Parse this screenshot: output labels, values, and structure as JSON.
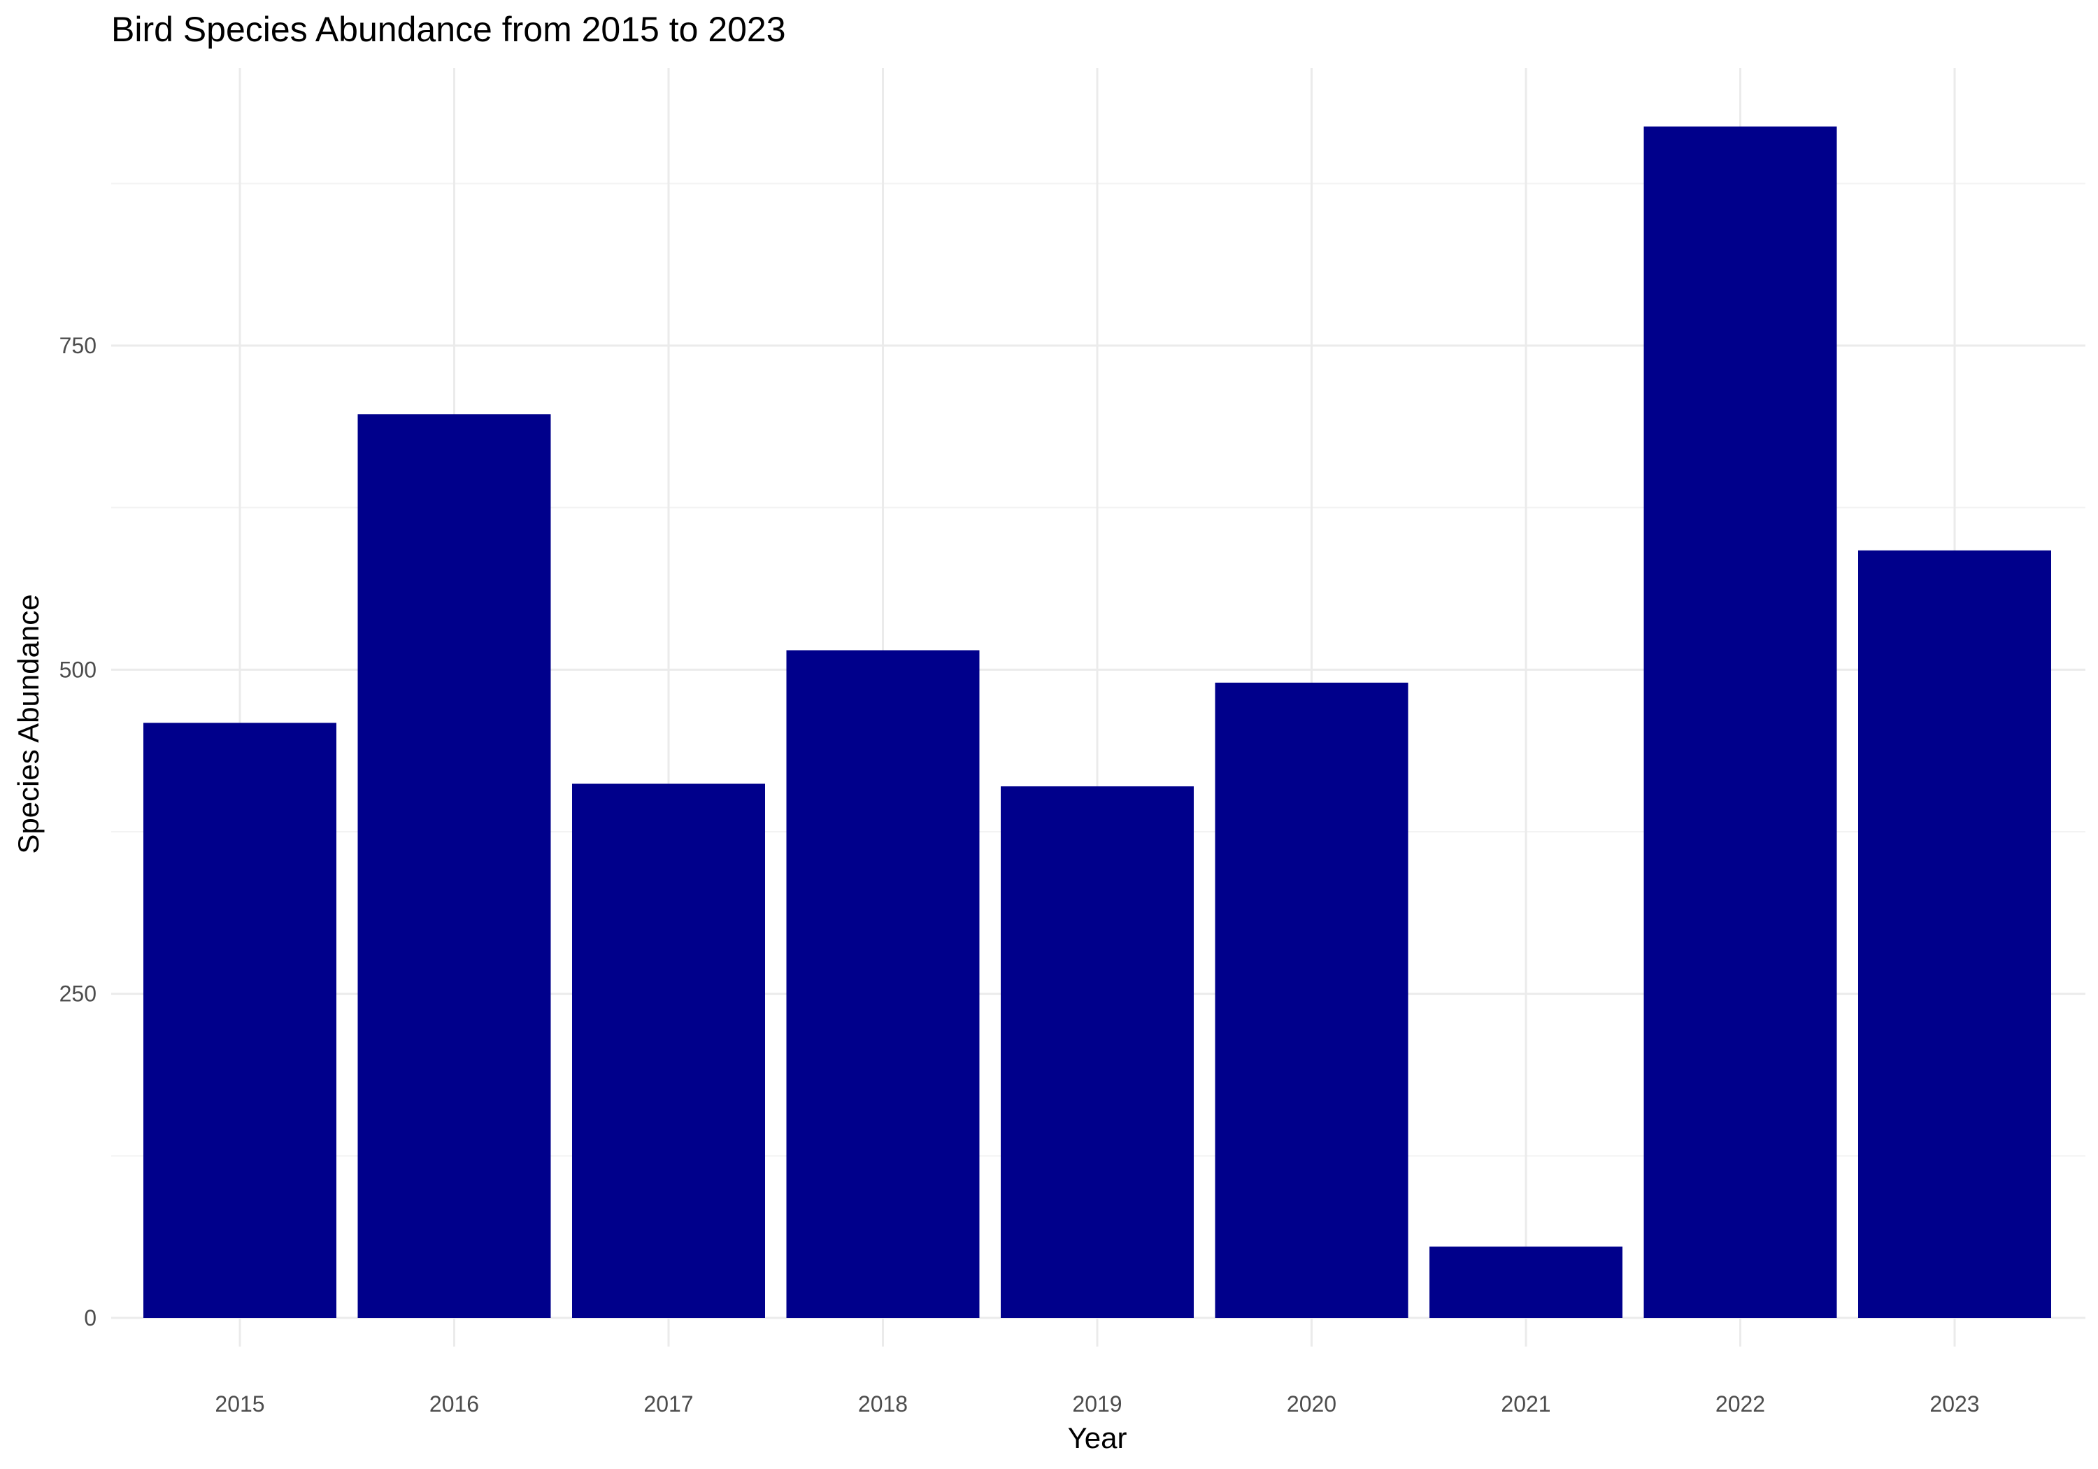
{
  "chart_data": {
    "type": "bar",
    "title": "Bird Species Abundance from 2015 to 2023",
    "xlabel": "Year",
    "ylabel": "Species Abundance",
    "categories": [
      "2015",
      "2016",
      "2017",
      "2018",
      "2019",
      "2020",
      "2021",
      "2022",
      "2023"
    ],
    "values": [
      459,
      697,
      412,
      515,
      410,
      490,
      55,
      919,
      592
    ],
    "ylim": [
      0,
      950
    ],
    "yticks": [
      0,
      250,
      500,
      750
    ],
    "ytick_labels": [
      "0",
      "250",
      "500",
      "750"
    ],
    "minor_gridlines": [
      125,
      375,
      625,
      875
    ],
    "grid": true,
    "legend": "none",
    "colors": {
      "bar": "#00008B",
      "grid_major": "#EBEBEB",
      "grid_minor": "#F3F3F3",
      "background": "#FFFFFF"
    }
  }
}
